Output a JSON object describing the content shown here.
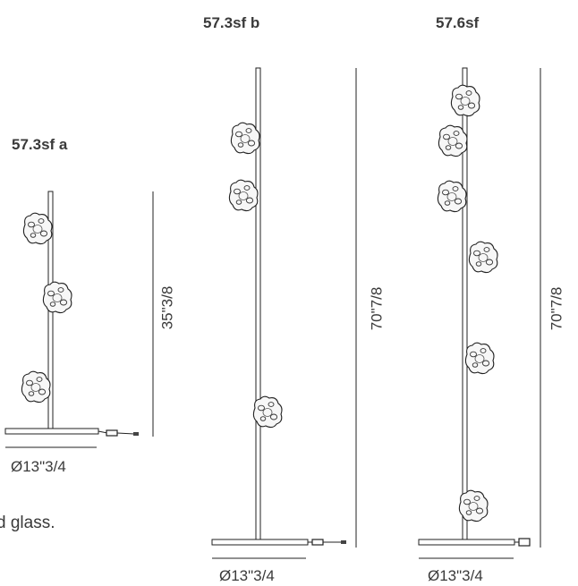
{
  "models": [
    {
      "title": "57.3sf a",
      "height_label": "35\"3/8",
      "base_label": "Ø13\"3/4"
    },
    {
      "title": "57.3sf b",
      "height_label": "70\"7/8",
      "base_label": "Ø13\"3/4"
    },
    {
      "title": "57.6sf",
      "height_label": "70\"7/8",
      "base_label": "Ø13\"3/4"
    }
  ],
  "caption_fragment": "d glass."
}
